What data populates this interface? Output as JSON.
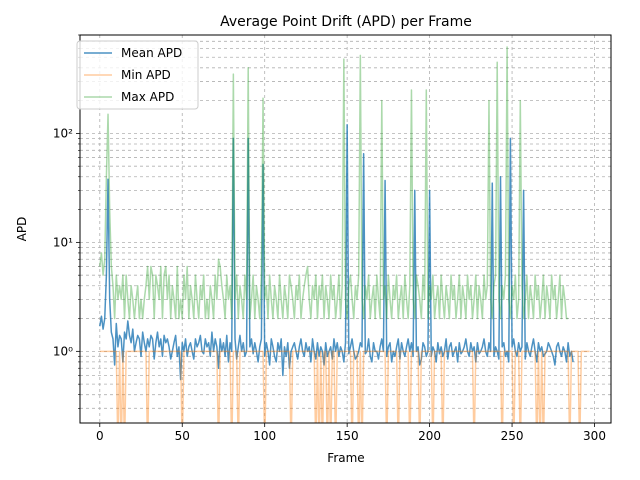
{
  "chart_data": {
    "type": "line",
    "title": "Average Point Drift (APD) per Frame",
    "xlabel": "Frame",
    "ylabel": "APD",
    "xlim": [
      -12,
      310
    ],
    "ylim": [
      0.22,
      800
    ],
    "yscale": "log",
    "grid": true,
    "legend_position": "top-left",
    "x_ticks": [
      0,
      50,
      100,
      150,
      200,
      250,
      300
    ],
    "y_ticks": [
      {
        "value": 1,
        "label": "10⁰"
      },
      {
        "value": 10,
        "label": "10¹"
      },
      {
        "value": 100,
        "label": "10²"
      }
    ],
    "colors": {
      "mean": "#1f77b4",
      "min": "#ff7f0e",
      "max": "#2ca02c",
      "grid": "#b0b0b0"
    },
    "x_start": 0,
    "series": [
      {
        "name": "Mean APD",
        "opacity": 0.8,
        "values": [
          1.7,
          2.1,
          1.6,
          2.0,
          5.0,
          38.0,
          3.0,
          1.5,
          1.3,
          0.75,
          1.8,
          1.1,
          1.4,
          1.3,
          0.8,
          1.5,
          1.3,
          1.9,
          1.4,
          1.2,
          1.6,
          1.0,
          1.2,
          1.4,
          1.3,
          0.9,
          1.5,
          1.2,
          1.0,
          1.3,
          1.1,
          1.4,
          1.3,
          0.85,
          1.2,
          1.5,
          1.1,
          1.3,
          0.9,
          1.4,
          1.2,
          1.3,
          1.1,
          0.85,
          1.0,
          1.2,
          1.4,
          0.9,
          1.1,
          0.55,
          1.2,
          1.0,
          1.3,
          0.9,
          1.1,
          1.2,
          1.0,
          0.85,
          1.3,
          1.1,
          1.2,
          1.4,
          1.0,
          0.95,
          1.3,
          1.1,
          1.2,
          0.9,
          1.5,
          1.0,
          1.3,
          1.1,
          0.7,
          1.3,
          1.0,
          1.2,
          0.9,
          1.4,
          0.8,
          1.2,
          1.0,
          90.0,
          1.3,
          0.85,
          1.1,
          1.4,
          1.0,
          1.2,
          0.9,
          1.0,
          90.0,
          1.1,
          1.3,
          0.95,
          1.2,
          1.0,
          0.8,
          1.1,
          1.3,
          52.0,
          0.9,
          1.2,
          1.0,
          0.75,
          1.3,
          1.1,
          0.9,
          0.8,
          1.2,
          1.0,
          1.3,
          0.6,
          1.1,
          0.9,
          1.2,
          0.7,
          1.0,
          1.1,
          1.2,
          1.0,
          0.85,
          1.1,
          1.3,
          1.0,
          0.9,
          1.2,
          1.0,
          1.1,
          0.8,
          1.3,
          1.0,
          0.85,
          1.2,
          0.9,
          1.1,
          1.0,
          0.75,
          1.2,
          0.9,
          1.0,
          1.1,
          0.85,
          1.3,
          1.0,
          1.2,
          0.9,
          1.1,
          1.0,
          0.8,
          1.2,
          120.0,
          0.95,
          1.1,
          1.3,
          1.0,
          0.85,
          0.9,
          1.0,
          1.2,
          1.1,
          65.0,
          0.95,
          1.0,
          1.3,
          0.9,
          0.8,
          1.2,
          1.0,
          1.0,
          0.85,
          1.1,
          1.3,
          1.0,
          37.0,
          0.9,
          1.1,
          1.2,
          0.8,
          1.0,
          0.9,
          1.1,
          1.3,
          0.85,
          1.2,
          1.0,
          0.9,
          1.1,
          1.3,
          1.0,
          1.2,
          0.9,
          30.0,
          1.0,
          1.1,
          0.75,
          0.85,
          1.2,
          1.1,
          0.9,
          1.0,
          30.0,
          0.9,
          1.1,
          1.0,
          0.8,
          1.2,
          0.95,
          1.1,
          0.9,
          1.0,
          1.3,
          0.85,
          1.1,
          1.2,
          0.9,
          1.0,
          1.1,
          0.8,
          1.2,
          0.95,
          1.0,
          1.1,
          1.3,
          1.0,
          0.9,
          1.2,
          1.0,
          1.1,
          0.8,
          1.2,
          0.95,
          1.0,
          1.1,
          1.3,
          1.0,
          0.9,
          1.2,
          1.0,
          35.0,
          0.9,
          1.1,
          1.0,
          0.85,
          40.0,
          1.1,
          1.2,
          0.9,
          1.0,
          0.8,
          90.0,
          1.1,
          1.3,
          1.0,
          0.9,
          1.2,
          1.0,
          1.1,
          30.0,
          0.85,
          1.2,
          1.0,
          0.9,
          1.1,
          1.3,
          1.0,
          0.8,
          1.2,
          1.0,
          1.1,
          0.9,
          0.95,
          1.0,
          1.2,
          1.1,
          1.0,
          0.9,
          0.75,
          1.1,
          1.2,
          1.0,
          0.9,
          1.1,
          1.0,
          0.8,
          1.2,
          0.9,
          1.0,
          0.8
        ]
      },
      {
        "name": "Min APD",
        "opacity": 0.4,
        "values": [
          1.0,
          1.0,
          1.0,
          1.0,
          1.0,
          1.0,
          1.0,
          1.0,
          1.0,
          1.0,
          1.0,
          0.0,
          1.0,
          0.0,
          1.0,
          0.0,
          1.0,
          1.0,
          1.0,
          1.0,
          1.0,
          1.0,
          1.0,
          1.0,
          1.0,
          1.0,
          1.0,
          1.0,
          1.0,
          0.0,
          1.0,
          1.0,
          1.0,
          1.0,
          1.0,
          1.0,
          1.0,
          1.0,
          1.0,
          1.0,
          1.0,
          1.0,
          1.0,
          1.0,
          1.0,
          1.0,
          1.0,
          1.0,
          1.0,
          1.0,
          0.0,
          1.0,
          1.0,
          1.0,
          1.0,
          1.0,
          1.0,
          1.0,
          1.0,
          1.0,
          1.0,
          1.0,
          1.0,
          1.0,
          1.0,
          1.0,
          1.0,
          1.0,
          1.0,
          1.0,
          1.0,
          1.0,
          0.0,
          1.0,
          1.0,
          1.0,
          1.0,
          1.0,
          1.0,
          1.0,
          0.0,
          1.0,
          1.0,
          1.0,
          0.0,
          1.0,
          1.0,
          1.0,
          1.0,
          1.0,
          1.0,
          1.0,
          1.0,
          1.0,
          1.0,
          1.0,
          1.0,
          1.0,
          1.0,
          1.0,
          0.0,
          1.0,
          1.0,
          1.0,
          1.0,
          1.0,
          1.0,
          1.0,
          1.0,
          1.0,
          1.0,
          1.0,
          1.0,
          1.0,
          1.0,
          1.0,
          0.0,
          1.0,
          1.0,
          1.0,
          1.0,
          1.0,
          1.0,
          1.0,
          1.0,
          1.0,
          1.0,
          1.0,
          1.0,
          1.0,
          1.0,
          0.0,
          1.0,
          0.0,
          1.0,
          0.0,
          1.0,
          1.0,
          0.0,
          1.0,
          0.0,
          1.0,
          1.0,
          0.0,
          1.0,
          1.0,
          1.0,
          1.0,
          1.0,
          1.0,
          1.0,
          1.0,
          1.0,
          0.0,
          1.0,
          1.0,
          1.0,
          0.0,
          1.0,
          0.0,
          1.0,
          1.0,
          1.0,
          1.0,
          1.0,
          1.0,
          1.0,
          1.0,
          1.0,
          1.0,
          1.0,
          1.0,
          1.0,
          1.0,
          0.0,
          1.0,
          1.0,
          1.0,
          1.0,
          1.0,
          1.0,
          0.0,
          1.0,
          1.0,
          1.0,
          1.0,
          1.0,
          1.0,
          0.0,
          1.0,
          1.0,
          1.0,
          1.0,
          1.0,
          0.0,
          1.0,
          1.0,
          1.0,
          1.0,
          1.0,
          1.0,
          1.0,
          0.0,
          1.0,
          1.0,
          1.0,
          1.0,
          1.0,
          0.0,
          1.0,
          1.0,
          1.0,
          1.0,
          1.0,
          1.0,
          1.0,
          1.0,
          1.0,
          1.0,
          1.0,
          1.0,
          1.0,
          1.0,
          1.0,
          1.0,
          1.0,
          1.0,
          0.0,
          1.0,
          1.0,
          1.0,
          1.0,
          1.0,
          1.0,
          1.0,
          1.0,
          1.0,
          1.0,
          1.0,
          1.0,
          1.0,
          1.0,
          1.0,
          1.0,
          0.0,
          1.0,
          1.0,
          1.0,
          1.0,
          1.0,
          1.0,
          0.0,
          1.0,
          1.0,
          1.0,
          0.0,
          1.0,
          1.0,
          1.0,
          1.0,
          1.0,
          1.0,
          1.0,
          1.0,
          1.0,
          0.0,
          1.0,
          0.0,
          1.0,
          0.0,
          1.0,
          1.0,
          1.0,
          1.0,
          1.0,
          1.0,
          1.0,
          1.0,
          1.0,
          1.0,
          1.0,
          1.0,
          1.0,
          1.0,
          1.0,
          0.0,
          1.0,
          1.0,
          1.0,
          1.0,
          1.0,
          0.0,
          1.0,
          1.0,
          1.0,
          1.0,
          1.0,
          1.0
        ]
      },
      {
        "name": "Max APD",
        "opacity": 0.4,
        "values": [
          6.0,
          8.0,
          5.0,
          7.0,
          40.0,
          150.0,
          20.0,
          6.0,
          4.0,
          2.0,
          5.0,
          3.0,
          4.0,
          3.0,
          5.0,
          2.0,
          5.0,
          3.0,
          2.0,
          4.0,
          3.0,
          2.0,
          3.0,
          4.0,
          2.0,
          3.0,
          2.0,
          3.0,
          4.0,
          6.0,
          3.0,
          6.0,
          5.0,
          2.0,
          5.0,
          4.0,
          3.0,
          6.0,
          2.0,
          5.0,
          6.0,
          3.0,
          5.0,
          2.0,
          4.0,
          3.0,
          2.0,
          6.0,
          2.0,
          3.0,
          2.0,
          5.0,
          3.0,
          6.0,
          2.0,
          4.0,
          3.0,
          2.0,
          5.0,
          3.0,
          2.0,
          4.0,
          3.0,
          5.0,
          2.0,
          3.0,
          2.0,
          4.0,
          3.0,
          2.0,
          5.0,
          3.0,
          7.0,
          6.0,
          4.0,
          3.0,
          2.0,
          5.0,
          3.0,
          4.0,
          2.0,
          350.0,
          3.0,
          5.0,
          2.0,
          4.0,
          3.0,
          2.0,
          5.0,
          3.0,
          400.0,
          2.0,
          3.0,
          5.0,
          2.0,
          4.0,
          3.0,
          2.0,
          5.0,
          210.0,
          3.0,
          4.0,
          2.0,
          5.0,
          3.0,
          2.0,
          4.0,
          3.0,
          2.0,
          5.0,
          3.0,
          2.0,
          4.0,
          3.0,
          2.0,
          5.0,
          4.0,
          3.0,
          2.0,
          4.0,
          3.0,
          5.0,
          2.0,
          3.0,
          4.0,
          5.0,
          6.0,
          3.0,
          2.0,
          4.0,
          3.0,
          5.0,
          2.0,
          4.0,
          3.0,
          5.0,
          2.0,
          4.0,
          3.0,
          2.0,
          5.0,
          3.0,
          4.0,
          2.0,
          3.0,
          5.0,
          2.0,
          4.0,
          480.0,
          3.0,
          2.0,
          4.0,
          5.0,
          3.0,
          2.0,
          4.0,
          3.0,
          5.0,
          520.0,
          3.0,
          2.0,
          4.0,
          3.0,
          5.0,
          2.0,
          3.0,
          4.0,
          2.0,
          5.0,
          3.0,
          2.0,
          200.0,
          3.0,
          4.0,
          2.0,
          5.0,
          3.0,
          2.0,
          4.0,
          3.0,
          5.0,
          2.0,
          3.0,
          4.0,
          2.0,
          5.0,
          3.0,
          2.0,
          4.0,
          250.0,
          3.0,
          2.0,
          5.0,
          4.0,
          3.0,
          2.0,
          5.0,
          3.0,
          250.0,
          2.0,
          4.0,
          3.0,
          5.0,
          2.0,
          3.0,
          4.0,
          2.0,
          5.0,
          3.0,
          2.0,
          4.0,
          3.0,
          2.0,
          5.0,
          3.0,
          4.0,
          2.0,
          3.0,
          5.0,
          2.0,
          4.0,
          3.0,
          2.0,
          5.0,
          3.0,
          4.0,
          2.0,
          3.0,
          5.0,
          2.0,
          4.0,
          3.0,
          2.0,
          5.0,
          3.0,
          4.0,
          200.0,
          3.0,
          2.0,
          4.0,
          5.0,
          450.0,
          3.0,
          2.0,
          4.0,
          3.0,
          5.0,
          620.0,
          3.0,
          2.0,
          4.0,
          3.0,
          5.0,
          2.0,
          3.0,
          200.0,
          4.0,
          2.0,
          3.0,
          5.0,
          2.0,
          4.0,
          3.0,
          2.0,
          5.0,
          3.0,
          4.0,
          2.0,
          3.0,
          5.0,
          2.0,
          4.0,
          3.0,
          2.0,
          5.0,
          3.0,
          4.0,
          2.0,
          3.0,
          5.0,
          2.0,
          4.0,
          3.0,
          2.0,
          2.0
        ]
      }
    ]
  }
}
